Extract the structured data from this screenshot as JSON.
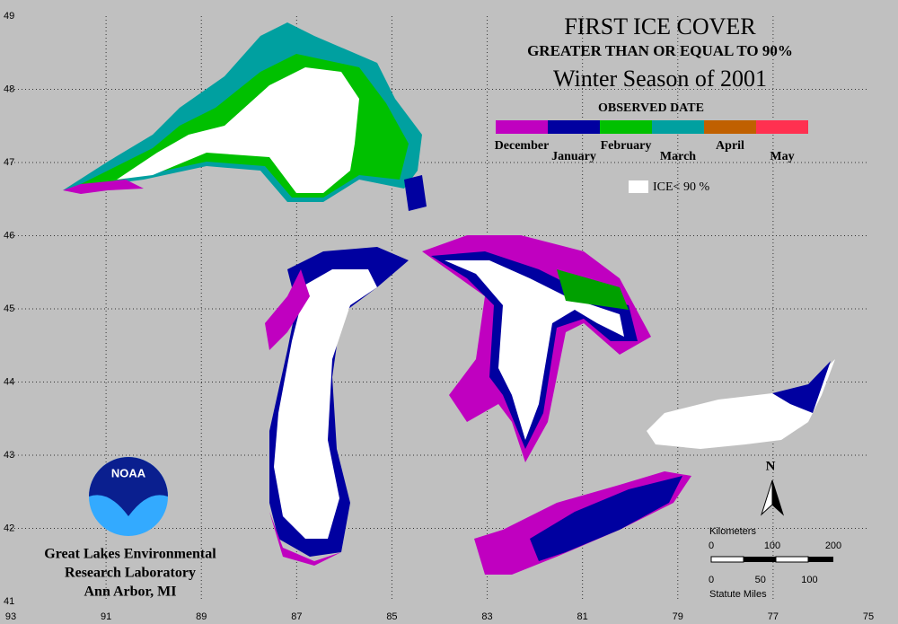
{
  "title": "FIRST ICE COVER",
  "subtitle": "GREATER THAN OR EQUAL TO 90%",
  "season": "Winter Season of 2001",
  "legend": {
    "title": "OBSERVED DATE",
    "items": [
      {
        "label": "December",
        "color": "#c000c0"
      },
      {
        "label": "January",
        "color": "#0000a0"
      },
      {
        "label": "February",
        "color": "#00c000"
      },
      {
        "label": "March",
        "color": "#00a0a0"
      },
      {
        "label": "April",
        "color": "#c06000"
      },
      {
        "label": "May",
        "color": "#ff3050"
      }
    ],
    "ice_label": "ICE< 90 %"
  },
  "grid": {
    "longitudes": [
      93,
      91,
      89,
      87,
      85,
      83,
      81,
      79,
      77,
      75
    ],
    "latitudes": [
      49,
      48,
      47,
      46,
      45,
      44,
      43,
      42,
      41
    ]
  },
  "logo": "NOAA",
  "credits": [
    "Great Lakes Environmental",
    "Research Laboratory",
    "Ann Arbor, MI"
  ],
  "north": "N",
  "scale": {
    "km_title": "Kilometers",
    "km_ticks": [
      0,
      100,
      200
    ],
    "mi_title": "Statute Miles",
    "mi_ticks": [
      0,
      50,
      100
    ]
  }
}
